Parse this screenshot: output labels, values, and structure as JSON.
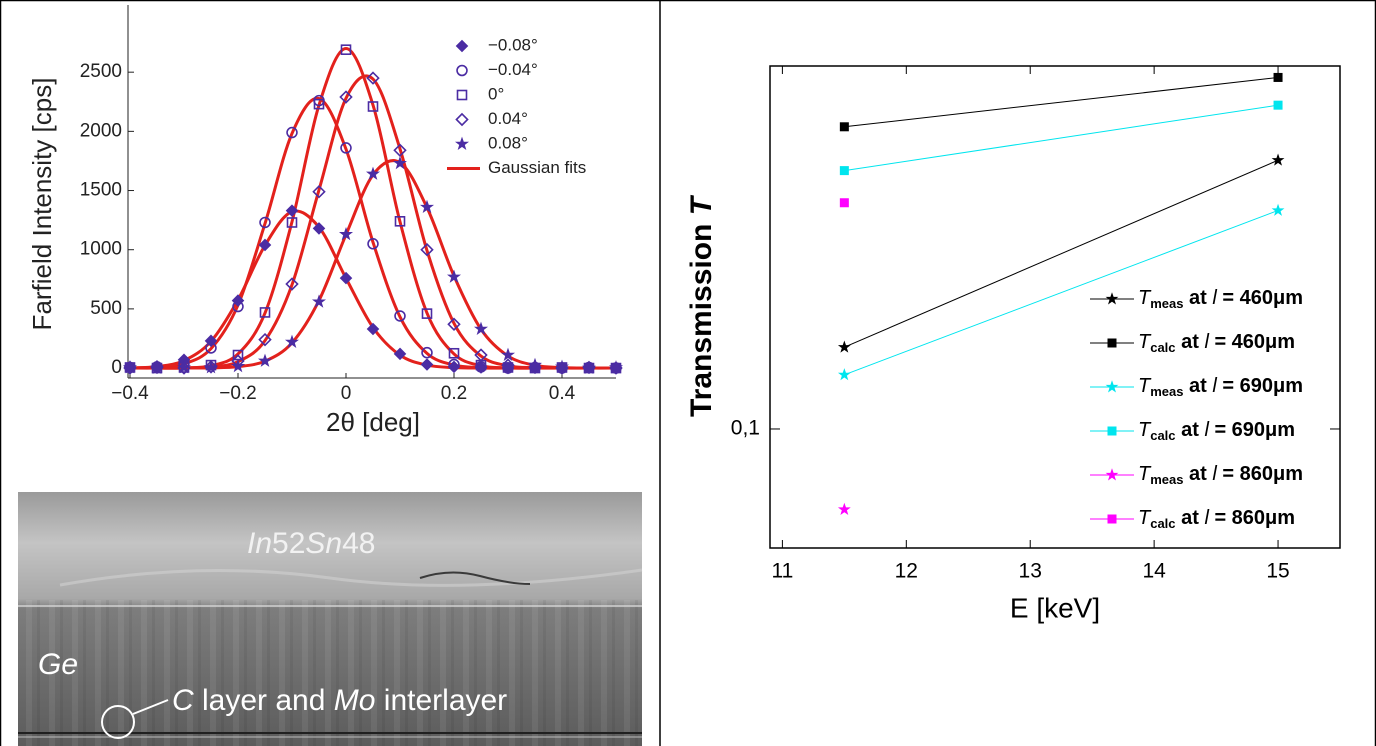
{
  "chart_data": [
    {
      "type": "scatter",
      "xlabel": "2θ [deg]",
      "ylabel": "Farfield Intensity [cps]",
      "xlim": [
        -0.4,
        0.5
      ],
      "ylim": [
        -84,
        3000
      ],
      "xticks": [
        {
          "value": -0.4,
          "label": "−0.4"
        },
        {
          "value": -0.2,
          "label": "−0.2"
        },
        0,
        0.2,
        0.4
      ],
      "yticks": [
        0,
        500,
        1000,
        1500,
        2000,
        2500
      ],
      "x": [
        -0.4,
        -0.35,
        -0.3,
        -0.25,
        -0.2,
        -0.15,
        -0.1,
        -0.05,
        0,
        0.05,
        0.1,
        0.15,
        0.2,
        0.25,
        0.3,
        0.35,
        0.4,
        0.45,
        0.5
      ],
      "series": [
        {
          "name": "−0.08°",
          "color": "#4b2ca3",
          "marker": "diamond-filled",
          "values": [
            10,
            15,
            70,
            230,
            570,
            1040,
            1330,
            1180,
            760,
            330,
            120,
            30,
            10,
            5,
            0,
            5,
            0,
            5,
            0
          ]
        },
        {
          "name": "−0.04°",
          "color": "#4b2ca3",
          "marker": "circle",
          "values": [
            5,
            10,
            40,
            170,
            520,
            1230,
            1990,
            2260,
            1860,
            1050,
            440,
            130,
            30,
            10,
            0,
            5,
            0,
            5,
            0
          ]
        },
        {
          "name": "0°",
          "color": "#4b2ca3",
          "marker": "square",
          "values": [
            5,
            0,
            5,
            25,
            110,
            470,
            1230,
            2230,
            2690,
            2210,
            1240,
            460,
            125,
            25,
            5,
            0,
            5,
            0,
            0
          ]
        },
        {
          "name": "0.04°",
          "color": "#4b2ca3",
          "marker": "diamond",
          "values": [
            0,
            5,
            0,
            10,
            60,
            240,
            710,
            1490,
            2290,
            2450,
            1840,
            1000,
            370,
            110,
            25,
            5,
            0,
            5,
            0
          ]
        },
        {
          "name": "0.08°",
          "color": "#4b2ca3",
          "marker": "star",
          "values": [
            5,
            0,
            5,
            5,
            15,
            60,
            220,
            560,
            1130,
            1640,
            1730,
            1360,
            770,
            330,
            110,
            25,
            10,
            0,
            5
          ]
        }
      ],
      "fits": {
        "name": "Gaussian fits",
        "color": "#e3211c",
        "values": [
          [
            2,
            12,
            63,
            226,
            576,
            1037,
            1321,
            1190,
            759,
            343,
            109,
            25,
            4,
            0,
            0,
            0,
            0,
            0,
            0
          ],
          [
            0,
            6,
            36,
            164,
            532,
            1221,
            1982,
            2277,
            1850,
            1063,
            433,
            124,
            25,
            4,
            0,
            0,
            0,
            0,
            0
          ],
          [
            0,
            0,
            2,
            20,
            119,
            465,
            1236,
            2222,
            2700,
            2222,
            1236,
            465,
            119,
            20,
            2,
            0,
            0,
            0,
            0
          ],
          [
            0,
            0,
            0,
            9,
            54,
            232,
            704,
            1505,
            2279,
            2442,
            1852,
            993,
            378,
            101,
            19,
            3,
            0,
            0,
            0
          ],
          [
            0,
            0,
            0,
            2,
            12,
            58,
            213,
            571,
            1127,
            1632,
            1736,
            1356,
            778,
            328,
            102,
            23,
            4,
            0,
            0
          ]
        ]
      }
    },
    {
      "type": "line",
      "log_y": true,
      "xlabel": "E [keV]",
      "ylabel_parts": [
        "Transmission ",
        "T"
      ],
      "xlim": [
        10.9,
        15.5
      ],
      "ylim": [
        0.047,
        1
      ],
      "xticks": [
        11,
        12,
        13,
        14,
        15
      ],
      "yticks": [
        {
          "value": 0.1,
          "label": "0,1"
        }
      ],
      "x": [
        11.5,
        15
      ],
      "series": [
        {
          "name": "Tmeas at l = 460μm",
          "color": "#000000",
          "marker": "star",
          "values": [
            0.168,
            0.55
          ]
        },
        {
          "name": "Tcalc at l = 460μm",
          "color": "#000000",
          "marker": "square",
          "values": [
            0.68,
            0.93
          ]
        },
        {
          "name": "Tmeas at l = 690μm",
          "color": "#00e5ee",
          "marker": "star",
          "values": [
            0.141,
            0.4
          ]
        },
        {
          "name": "Tcalc at l = 690μm",
          "color": "#00e5ee",
          "marker": "square",
          "values": [
            0.515,
            0.78
          ]
        },
        {
          "name": "Tmeas at l = 860μm",
          "color": "#ff00ff",
          "marker": "star",
          "values": [
            0.06,
            null
          ]
        },
        {
          "name": "Tcalc at l = 860μm",
          "color": "#ff00ff",
          "marker": "square",
          "values": [
            0.42,
            null
          ]
        }
      ]
    }
  ],
  "micrograph": {
    "top_label": [
      "In",
      "52",
      "Sn",
      "48"
    ],
    "middle_label": "Ge",
    "bottom_label": [
      "C",
      " layer and ",
      "Mo",
      " interlayer"
    ]
  }
}
